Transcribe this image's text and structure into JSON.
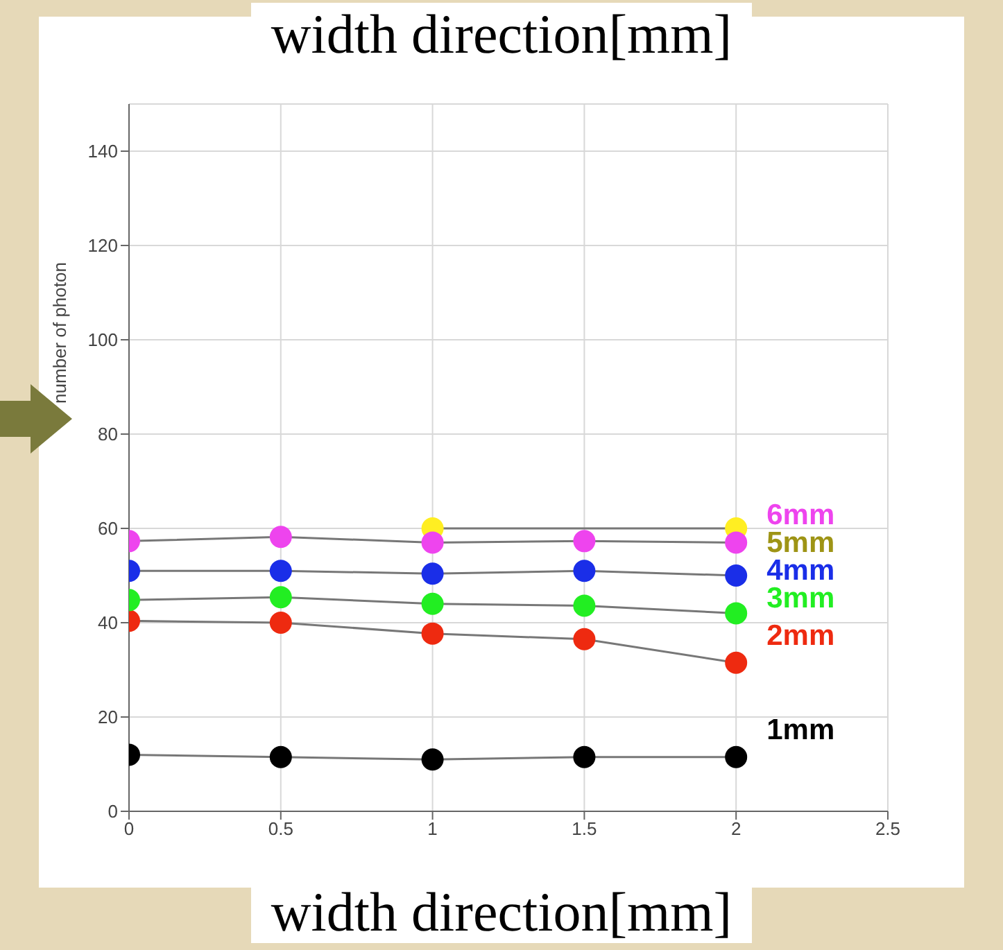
{
  "chart_data": {
    "type": "line",
    "title": "width direction[mm]",
    "xlabel": "width direction[mm]",
    "ylabel": "number of photon",
    "x": [
      0,
      0.5,
      1,
      1.5,
      2
    ],
    "series": [
      {
        "name": "6mm",
        "color": "#ee44ee",
        "values": [
          57.3,
          58.2,
          57,
          57.3,
          57
        ]
      },
      {
        "name": "5mm",
        "color": "#ffee22",
        "values": [
          null,
          null,
          60,
          null,
          60
        ]
      },
      {
        "name": "4mm",
        "color": "#1a2ee8",
        "values": [
          51,
          51,
          50.4,
          51,
          50
        ]
      },
      {
        "name": "3mm",
        "color": "#22ee22",
        "values": [
          44.8,
          45.4,
          44,
          43.6,
          42
        ]
      },
      {
        "name": "2mm",
        "color": "#ee2a10",
        "values": [
          40.4,
          40,
          37.7,
          36.5,
          31.5
        ]
      },
      {
        "name": "1mm",
        "color": "#000000",
        "values": [
          12,
          11.5,
          11,
          11.5,
          11.5
        ]
      }
    ],
    "xlim": [
      0,
      2.5
    ],
    "xticks": [
      0,
      0.5,
      1,
      1.5,
      2,
      2.5
    ],
    "ylim": [
      0,
      150
    ],
    "yticks": [
      0,
      20,
      40,
      60,
      80,
      100,
      120,
      140
    ],
    "grid": true,
    "legend": false,
    "marker": "circle",
    "line_style": "solid"
  }
}
